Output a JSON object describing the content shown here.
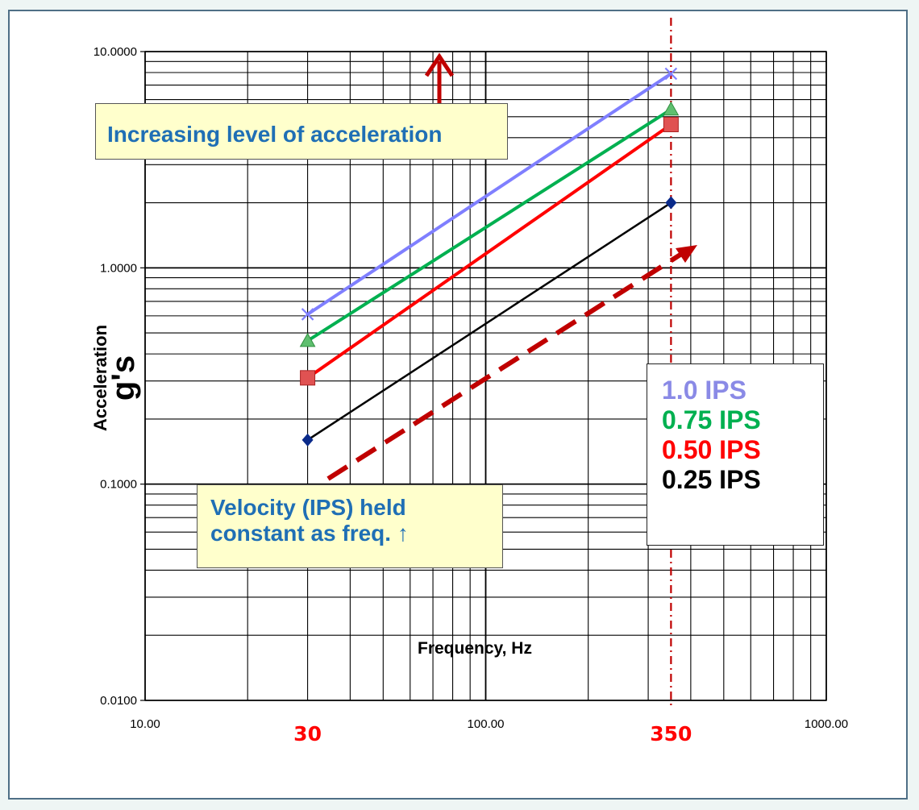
{
  "chart_data": {
    "type": "line",
    "x_scale": "log",
    "y_scale": "log",
    "xlim": [
      10,
      1000
    ],
    "ylim": [
      0.01,
      10
    ],
    "x_tick_labels": [
      "10.00",
      "100.00",
      "1000.00"
    ],
    "x_tick_values": [
      10,
      100,
      1000
    ],
    "y_tick_labels": [
      "0.0100",
      "0.1000",
      "1.0000",
      "10.0000"
    ],
    "y_tick_values": [
      0.01,
      0.1,
      1,
      10
    ],
    "xlabel": "Frequency, Hz",
    "ylabel": "Acceleration",
    "ylabel_unit": "g's",
    "grid": true,
    "highlighted_x": [
      {
        "label": "30",
        "value": 30
      },
      {
        "label": "350",
        "value": 350
      }
    ],
    "x": [
      30,
      350
    ],
    "series": [
      {
        "name": "1.0 IPS",
        "color": "#7f7fff",
        "marker": "x",
        "values": [
          0.61,
          7.9
        ]
      },
      {
        "name": "0.75 IPS",
        "color": "#00b050",
        "marker": "triangle",
        "values": [
          0.46,
          5.4
        ]
      },
      {
        "name": "0.50 IPS",
        "color": "#ff0000",
        "marker": "square",
        "values": [
          0.31,
          4.6
        ]
      },
      {
        "name": "0.25 IPS",
        "color": "#000000",
        "marker": "diamond",
        "values": [
          0.16,
          2.0
        ]
      }
    ],
    "annotations": {
      "acceleration_callout": "Increasing level of acceleration",
      "velocity_callout_line1": "Velocity (IPS) held",
      "velocity_callout_line2": "constant as freq. ↑",
      "arrow_color": "#c00000",
      "highlight_color": "#ff0000"
    }
  }
}
